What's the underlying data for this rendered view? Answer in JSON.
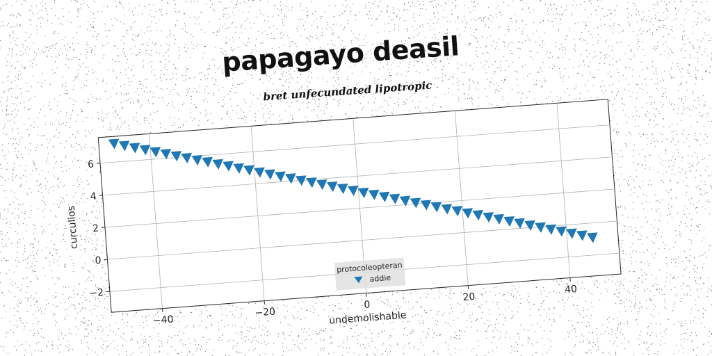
{
  "chart_data": {
    "type": "scatter",
    "title": "papagayo deasil",
    "subtitle": "bret unfecundated lipotropic",
    "xlabel": "undemolishable",
    "ylabel": "curculios",
    "xlim": [
      -50,
      50
    ],
    "ylim": [
      -3.3,
      7.6
    ],
    "xticks": [
      -40,
      -20,
      0,
      20,
      40
    ],
    "xtick_labels": [
      "−40",
      "−20",
      "0",
      "20",
      "40"
    ],
    "yticks": [
      -2,
      0,
      2,
      4,
      6
    ],
    "ytick_labels": [
      "−2",
      "0",
      "2",
      "4",
      "6"
    ],
    "grid": true,
    "legend": {
      "title": "protocoleopteran",
      "placement": "bottom-center"
    },
    "series": [
      {
        "name": "addie",
        "marker": "triangle-down",
        "color": "#1f77b4",
        "x": [
          -47,
          -45,
          -43,
          -41,
          -39,
          -37,
          -35,
          -33,
          -31,
          -29,
          -27,
          -25,
          -23,
          -21,
          -19,
          -17,
          -15,
          -13,
          -11,
          -9,
          -7,
          -5,
          -3,
          -1,
          1,
          3,
          5,
          7,
          9,
          11,
          13,
          15,
          17,
          19,
          21,
          23,
          25,
          27,
          29,
          31,
          33,
          35,
          37,
          39,
          41,
          43,
          45
        ],
        "y": [
          7.15,
          6.98,
          6.8,
          6.63,
          6.45,
          6.28,
          6.1,
          5.93,
          5.75,
          5.58,
          5.4,
          5.23,
          5.05,
          4.88,
          4.7,
          4.53,
          4.35,
          4.18,
          4.0,
          3.83,
          3.65,
          3.48,
          3.3,
          3.13,
          2.95,
          2.78,
          2.6,
          2.43,
          2.25,
          2.08,
          1.9,
          1.73,
          1.55,
          1.38,
          1.2,
          1.03,
          0.85,
          0.68,
          0.5,
          0.33,
          0.15,
          -0.02,
          -0.2,
          -0.37,
          -0.55,
          -0.72,
          -0.9
        ]
      }
    ]
  }
}
